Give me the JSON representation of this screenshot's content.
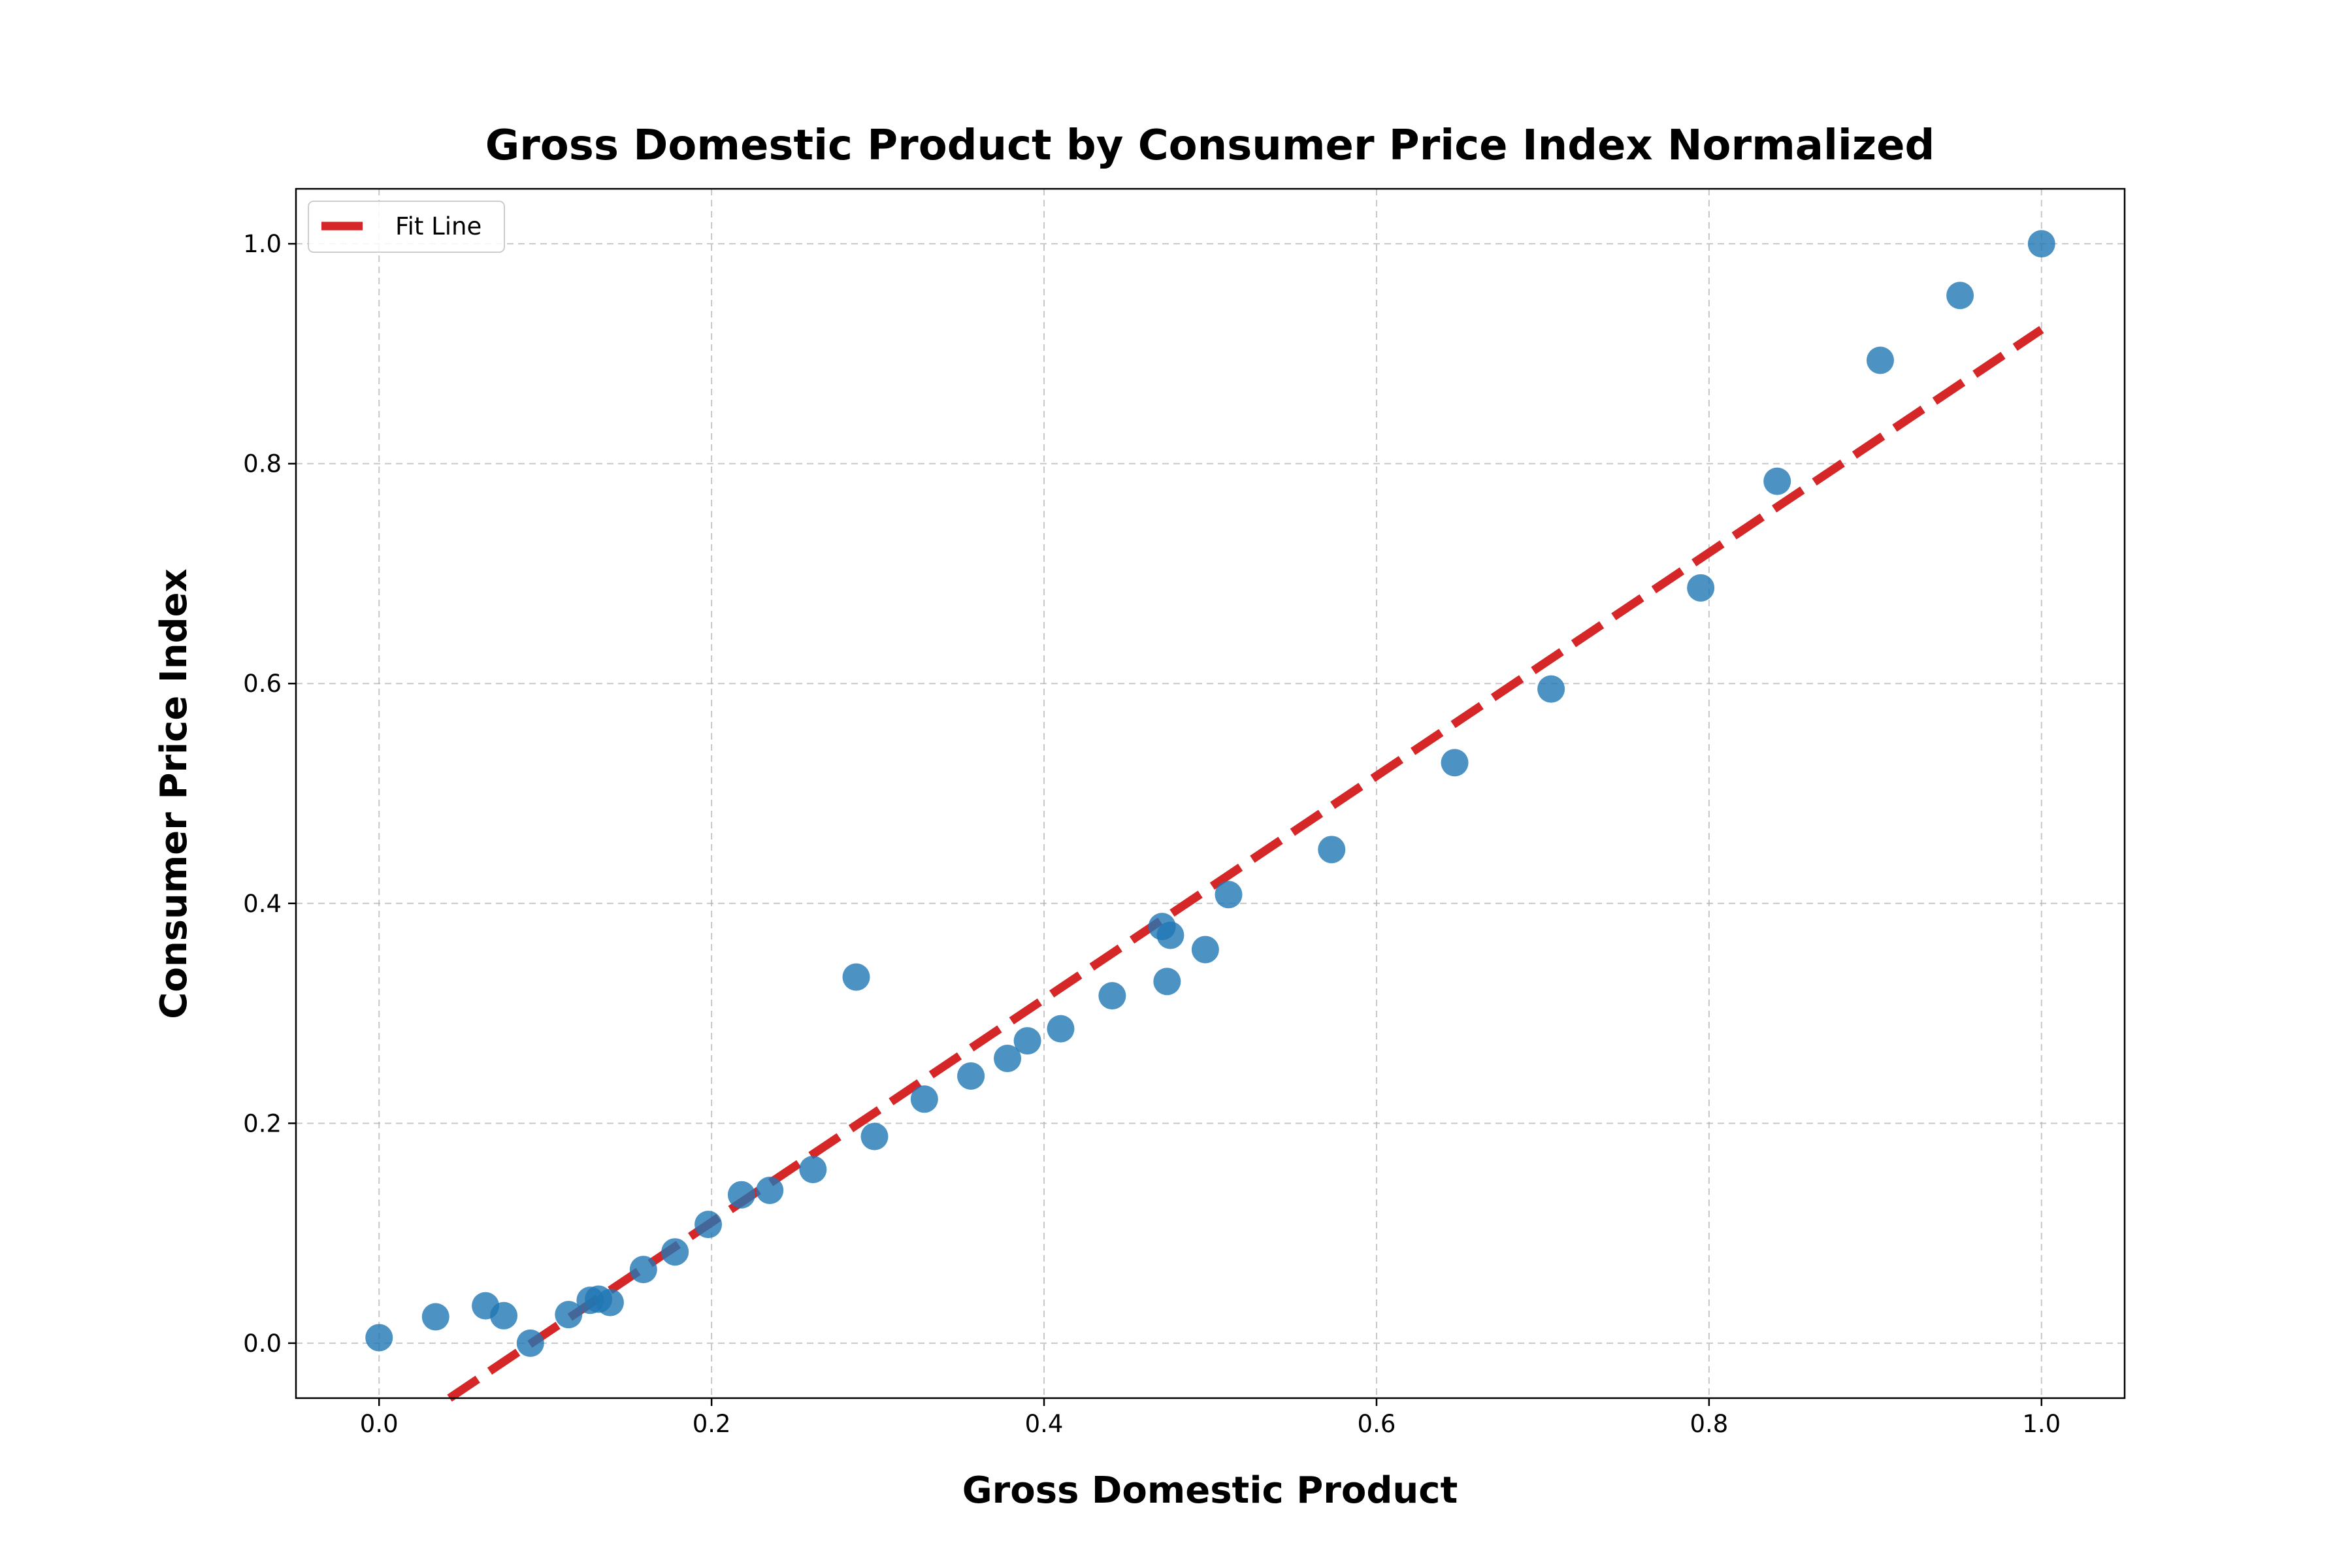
{
  "chart_data": {
    "type": "scatter",
    "title": "Gross Domestic Product by Consumer Price Index Normalized",
    "xlabel": "Gross Domestic Product",
    "ylabel": "Consumer Price Index",
    "xlim": [
      -0.05,
      1.05
    ],
    "ylim": [
      -0.05,
      1.05
    ],
    "xticks": [
      "0.0",
      "0.2",
      "0.4",
      "0.6",
      "0.8",
      "1.0"
    ],
    "yticks": [
      "0.0",
      "0.2",
      "0.4",
      "0.6",
      "0.8",
      "1.0"
    ],
    "grid": true,
    "legend_position": "upper-left",
    "colors": {
      "points": "#1f77b4",
      "fit_line": "#d62728"
    },
    "points": [
      {
        "x": 0.0,
        "y": 0.005
      },
      {
        "x": 0.034,
        "y": 0.024
      },
      {
        "x": 0.064,
        "y": 0.034
      },
      {
        "x": 0.075,
        "y": 0.025
      },
      {
        "x": 0.091,
        "y": 0.0
      },
      {
        "x": 0.114,
        "y": 0.026
      },
      {
        "x": 0.127,
        "y": 0.039
      },
      {
        "x": 0.132,
        "y": 0.04
      },
      {
        "x": 0.139,
        "y": 0.037
      },
      {
        "x": 0.159,
        "y": 0.067
      },
      {
        "x": 0.178,
        "y": 0.083
      },
      {
        "x": 0.198,
        "y": 0.108
      },
      {
        "x": 0.218,
        "y": 0.135
      },
      {
        "x": 0.235,
        "y": 0.139
      },
      {
        "x": 0.261,
        "y": 0.158
      },
      {
        "x": 0.287,
        "y": 0.333
      },
      {
        "x": 0.298,
        "y": 0.188
      },
      {
        "x": 0.328,
        "y": 0.222
      },
      {
        "x": 0.356,
        "y": 0.243
      },
      {
        "x": 0.378,
        "y": 0.259
      },
      {
        "x": 0.39,
        "y": 0.275
      },
      {
        "x": 0.41,
        "y": 0.286
      },
      {
        "x": 0.441,
        "y": 0.316
      },
      {
        "x": 0.471,
        "y": 0.379
      },
      {
        "x": 0.474,
        "y": 0.329
      },
      {
        "x": 0.476,
        "y": 0.371
      },
      {
        "x": 0.497,
        "y": 0.358
      },
      {
        "x": 0.511,
        "y": 0.408
      },
      {
        "x": 0.573,
        "y": 0.449
      },
      {
        "x": 0.647,
        "y": 0.528
      },
      {
        "x": 0.705,
        "y": 0.595
      },
      {
        "x": 0.795,
        "y": 0.687
      },
      {
        "x": 0.841,
        "y": 0.784
      },
      {
        "x": 0.903,
        "y": 0.894
      },
      {
        "x": 0.951,
        "y": 0.953
      },
      {
        "x": 1.0,
        "y": 1.0
      }
    ],
    "series": [
      {
        "name": "Fit Line",
        "type": "line",
        "style": "dashed",
        "slope": 1.015,
        "intercept": -0.093
      }
    ]
  }
}
